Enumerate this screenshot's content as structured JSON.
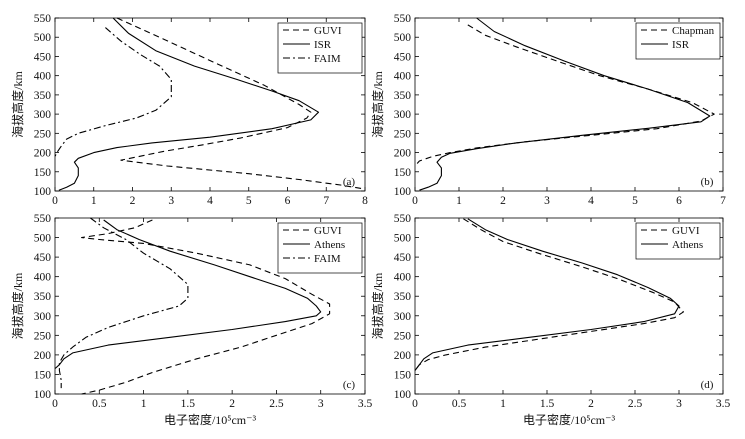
{
  "chart_data": [
    {
      "type": "line",
      "panel_label": "(a)",
      "xlabel": "",
      "ylabel": "海拔高度/km",
      "xlim": [
        0,
        8
      ],
      "ylim": [
        100,
        550
      ],
      "xticks": [
        0,
        1,
        2,
        3,
        4,
        5,
        6,
        7,
        8
      ],
      "yticks": [
        100,
        150,
        200,
        250,
        300,
        350,
        400,
        450,
        500,
        550
      ],
      "grid": false,
      "legend_position": "top-right",
      "series": [
        {
          "name": "GUVI",
          "style": "dashed",
          "points": [
            [
              1.6,
              550
            ],
            [
              2.8,
              495
            ],
            [
              4.2,
              430
            ],
            [
              5.4,
              375
            ],
            [
              6.3,
              325
            ],
            [
              6.6,
              305
            ],
            [
              6.5,
              290
            ],
            [
              6.0,
              265
            ],
            [
              4.8,
              238
            ],
            [
              3.8,
              220
            ],
            [
              2.8,
              203
            ],
            [
              1.7,
              180
            ],
            [
              2.9,
              165
            ],
            [
              5.0,
              145
            ],
            [
              6.3,
              130
            ],
            [
              7.4,
              115
            ],
            [
              8.0,
              105
            ]
          ]
        },
        {
          "name": "ISR",
          "style": "solid",
          "points": [
            [
              1.5,
              550
            ],
            [
              1.9,
              510
            ],
            [
              2.6,
              465
            ],
            [
              3.6,
              425
            ],
            [
              4.7,
              390
            ],
            [
              5.6,
              360
            ],
            [
              6.3,
              335
            ],
            [
              6.8,
              305
            ],
            [
              6.6,
              285
            ],
            [
              5.6,
              262
            ],
            [
              4.0,
              240
            ],
            [
              2.5,
              225
            ],
            [
              1.6,
              213
            ],
            [
              1.0,
              200
            ],
            [
              0.6,
              185
            ],
            [
              0.5,
              175
            ],
            [
              0.6,
              160
            ],
            [
              0.6,
              140
            ],
            [
              0.5,
              120
            ],
            [
              0.3,
              110
            ],
            [
              0.1,
              102
            ]
          ]
        },
        {
          "name": "FAIM",
          "style": "dashdot",
          "points": [
            [
              1.3,
              525
            ],
            [
              1.7,
              490
            ],
            [
              2.2,
              455
            ],
            [
              2.7,
              425
            ],
            [
              3.0,
              390
            ],
            [
              3.0,
              345
            ],
            [
              2.6,
              310
            ],
            [
              2.1,
              290
            ],
            [
              1.3,
              270
            ],
            [
              0.6,
              250
            ],
            [
              0.3,
              235
            ],
            [
              0.15,
              215
            ],
            [
              0.05,
              200
            ],
            [
              0.0,
              190
            ]
          ]
        }
      ]
    },
    {
      "type": "line",
      "panel_label": "(b)",
      "xlabel": "",
      "ylabel": "海拔高度/km",
      "xlim": [
        0,
        7
      ],
      "ylim": [
        100,
        550
      ],
      "xticks": [
        0,
        1,
        2,
        3,
        4,
        5,
        6,
        7
      ],
      "yticks": [
        100,
        150,
        200,
        250,
        300,
        350,
        400,
        450,
        500,
        550
      ],
      "grid": false,
      "legend_position": "top-right",
      "series": [
        {
          "name": "Chapman",
          "style": "dashed",
          "points": [
            [
              1.2,
              532
            ],
            [
              1.6,
              505
            ],
            [
              2.3,
              475
            ],
            [
              3.3,
              435
            ],
            [
              4.2,
              400
            ],
            [
              5.3,
              365
            ],
            [
              6.3,
              330
            ],
            [
              6.8,
              300
            ],
            [
              6.5,
              282
            ],
            [
              5.5,
              262
            ],
            [
              4.0,
              245
            ],
            [
              2.5,
              228
            ],
            [
              1.4,
              212
            ],
            [
              0.8,
              200
            ],
            [
              0.4,
              190
            ],
            [
              0.1,
              178
            ],
            [
              0.0,
              165
            ]
          ]
        },
        {
          "name": "ISR",
          "style": "solid",
          "points": [
            [
              1.4,
              550
            ],
            [
              1.8,
              515
            ],
            [
              2.5,
              478
            ],
            [
              3.4,
              438
            ],
            [
              4.3,
              400
            ],
            [
              5.3,
              365
            ],
            [
              6.2,
              330
            ],
            [
              6.7,
              295
            ],
            [
              6.5,
              280
            ],
            [
              5.3,
              263
            ],
            [
              3.8,
              245
            ],
            [
              2.3,
              225
            ],
            [
              1.4,
              210
            ],
            [
              0.8,
              198
            ],
            [
              0.6,
              188
            ],
            [
              0.5,
              175
            ],
            [
              0.6,
              160
            ],
            [
              0.6,
              140
            ],
            [
              0.5,
              120
            ],
            [
              0.3,
              110
            ],
            [
              0.1,
              102
            ]
          ]
        }
      ]
    },
    {
      "type": "line",
      "panel_label": "(c)",
      "xlabel": "电子密度/10⁵cm⁻³",
      "ylabel": "海拔高度/km",
      "xlim": [
        0,
        3.5
      ],
      "ylim": [
        100,
        550
      ],
      "xticks": [
        "0",
        "0.5",
        "1",
        "1.5",
        "2",
        "2.5",
        "3",
        "3.5"
      ],
      "yticks": [
        100,
        150,
        200,
        250,
        300,
        350,
        400,
        450,
        500,
        550
      ],
      "grid": false,
      "legend_position": "top-right",
      "series": [
        {
          "name": "GUVI",
          "style": "dashed",
          "points": [
            [
              1.1,
              545
            ],
            [
              0.9,
              525
            ],
            [
              0.6,
              510
            ],
            [
              0.3,
              500
            ],
            [
              0.5,
              495
            ],
            [
              1.0,
              485
            ],
            [
              1.6,
              460
            ],
            [
              2.2,
              430
            ],
            [
              2.6,
              395
            ],
            [
              2.9,
              355
            ],
            [
              3.1,
              330
            ],
            [
              3.1,
              305
            ],
            [
              2.9,
              280
            ],
            [
              2.5,
              250
            ],
            [
              2.1,
              220
            ],
            [
              1.6,
              190
            ],
            [
              1.1,
              155
            ],
            [
              0.8,
              130
            ],
            [
              0.5,
              110
            ],
            [
              0.3,
              100
            ]
          ]
        },
        {
          "name": "Athens",
          "style": "solid",
          "points": [
            [
              0.55,
              545
            ],
            [
              0.7,
              520
            ],
            [
              0.95,
              495
            ],
            [
              1.3,
              465
            ],
            [
              1.8,
              430
            ],
            [
              2.2,
              400
            ],
            [
              2.6,
              370
            ],
            [
              2.85,
              345
            ],
            [
              2.95,
              325
            ],
            [
              3.0,
              310
            ],
            [
              2.95,
              300
            ],
            [
              2.6,
              285
            ],
            [
              2.0,
              265
            ],
            [
              1.3,
              245
            ],
            [
              0.6,
              225
            ],
            [
              0.2,
              205
            ],
            [
              0.1,
              190
            ],
            [
              0.05,
              175
            ],
            [
              0.0,
              165
            ]
          ]
        },
        {
          "name": "FAIM",
          "style": "dashdot",
          "points": [
            [
              0.4,
              550
            ],
            [
              0.55,
              525
            ],
            [
              0.8,
              495
            ],
            [
              1.0,
              460
            ],
            [
              1.3,
              420
            ],
            [
              1.5,
              380
            ],
            [
              1.5,
              345
            ],
            [
              1.4,
              325
            ],
            [
              1.0,
              300
            ],
            [
              0.6,
              270
            ],
            [
              0.35,
              245
            ],
            [
              0.2,
              220
            ],
            [
              0.1,
              200
            ],
            [
              0.05,
              180
            ],
            [
              0.05,
              160
            ],
            [
              0.07,
              135
            ],
            [
              0.07,
              115
            ]
          ]
        }
      ]
    },
    {
      "type": "line",
      "panel_label": "(d)",
      "xlabel": "电子密度/10⁵cm⁻³",
      "ylabel": "海拔高度/km",
      "xlim": [
        0,
        3.5
      ],
      "ylim": [
        100,
        550
      ],
      "xticks": [
        "0",
        "0.5",
        "1",
        "1.5",
        "2",
        "2.5",
        "3",
        "3.5"
      ],
      "yticks": [
        100,
        150,
        200,
        250,
        300,
        350,
        400,
        450,
        500,
        550
      ],
      "grid": false,
      "legend_position": "top-right",
      "series": [
        {
          "name": "GUVI",
          "style": "dashed",
          "points": [
            [
              0.55,
              548
            ],
            [
              0.75,
              520
            ],
            [
              1.0,
              490
            ],
            [
              1.4,
              460
            ],
            [
              1.9,
              425
            ],
            [
              2.3,
              395
            ],
            [
              2.7,
              360
            ],
            [
              2.95,
              335
            ],
            [
              3.05,
              310
            ],
            [
              2.95,
              295
            ],
            [
              2.6,
              280
            ],
            [
              2.0,
              260
            ],
            [
              1.4,
              240
            ],
            [
              0.8,
              220
            ],
            [
              0.35,
              200
            ],
            [
              0.15,
              188
            ],
            [
              0.05,
              175
            ],
            [
              0.0,
              160
            ]
          ]
        },
        {
          "name": "Athens",
          "style": "solid",
          "points": [
            [
              0.6,
              548
            ],
            [
              0.8,
              520
            ],
            [
              1.05,
              495
            ],
            [
              1.45,
              465
            ],
            [
              1.9,
              435
            ],
            [
              2.3,
              405
            ],
            [
              2.65,
              372
            ],
            [
              2.9,
              345
            ],
            [
              3.0,
              325
            ],
            [
              2.95,
              305
            ],
            [
              2.6,
              285
            ],
            [
              2.0,
              265
            ],
            [
              1.3,
              245
            ],
            [
              0.6,
              225
            ],
            [
              0.2,
              205
            ],
            [
              0.1,
              190
            ],
            [
              0.05,
              175
            ],
            [
              0.0,
              160
            ]
          ]
        }
      ]
    }
  ]
}
